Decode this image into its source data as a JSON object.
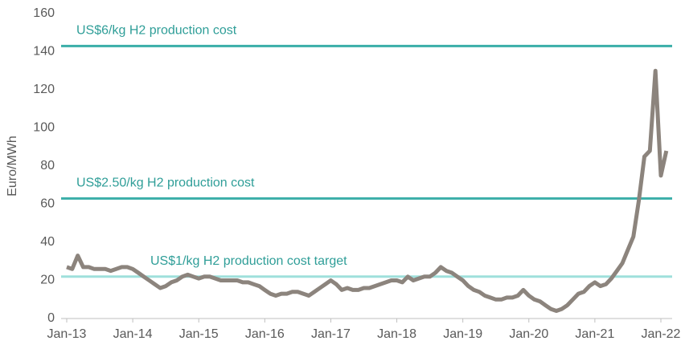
{
  "chart_data": {
    "type": "line",
    "y_label": "Euro/MWh",
    "categories": [
      "Jan-13",
      null,
      null,
      null,
      null,
      null,
      null,
      null,
      null,
      null,
      null,
      null,
      "Jan-14",
      null,
      null,
      null,
      null,
      null,
      null,
      null,
      null,
      null,
      null,
      null,
      "Jan-15",
      null,
      null,
      null,
      null,
      null,
      null,
      null,
      null,
      null,
      null,
      null,
      "Jan-16",
      null,
      null,
      null,
      null,
      null,
      null,
      null,
      null,
      null,
      null,
      null,
      "Jan-17",
      null,
      null,
      null,
      null,
      null,
      null,
      null,
      null,
      null,
      null,
      null,
      "Jan-18",
      null,
      null,
      null,
      null,
      null,
      null,
      null,
      null,
      null,
      null,
      null,
      "Jan-19",
      null,
      null,
      null,
      null,
      null,
      null,
      null,
      null,
      null,
      null,
      null,
      "Jan-20",
      null,
      null,
      null,
      null,
      null,
      null,
      null,
      null,
      null,
      null,
      null,
      "Jan-21",
      null,
      null,
      null,
      null,
      null,
      null,
      null,
      null,
      null,
      null,
      null,
      "Jan-22",
      null
    ],
    "series": [
      {
        "color": "#8c847d",
        "values": [
          27,
          26,
          33,
          27,
          27,
          26,
          26,
          26,
          25,
          26,
          27,
          27,
          26,
          24,
          22,
          20,
          18,
          16,
          17,
          19,
          20,
          22,
          23,
          22,
          21,
          22,
          22,
          21,
          20,
          20,
          20,
          20,
          19,
          19,
          18,
          17,
          15,
          13,
          12,
          13,
          13,
          14,
          14,
          13,
          12,
          14,
          16,
          18,
          20,
          18,
          15,
          16,
          15,
          15,
          16,
          16,
          17,
          18,
          19,
          20,
          20,
          19,
          22,
          20,
          21,
          22,
          22,
          24,
          27,
          25,
          24,
          22,
          20,
          17,
          15,
          14,
          12,
          11,
          10,
          10,
          11,
          11,
          12,
          15,
          12,
          10,
          9,
          7,
          5,
          4,
          5,
          7,
          10,
          13,
          14,
          17,
          19,
          17,
          18,
          21,
          25,
          29,
          36,
          43,
          62,
          85,
          88,
          130,
          75,
          88
        ]
      }
    ],
    "reference_lines": [
      {
        "label": "US$6/kg  H2 production cost",
        "value": 143,
        "color": "#3aaea8"
      },
      {
        "label": "US$2.50/kg  H2 production cost",
        "value": 63,
        "color": "#3aaea8"
      },
      {
        "label": "US$1/kg  H2 production cost target",
        "value": 22,
        "color": "#9fe0dc"
      }
    ],
    "ylim": [
      0,
      160
    ],
    "yticks": [
      0,
      20,
      40,
      60,
      80,
      100,
      120,
      140,
      160
    ]
  }
}
